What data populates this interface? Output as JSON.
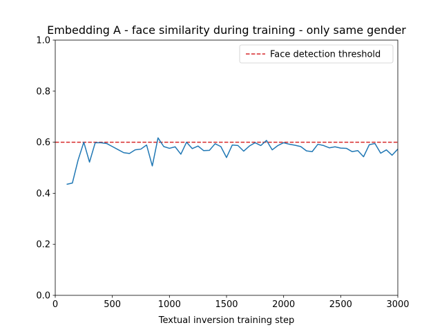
{
  "chart_data": {
    "type": "line",
    "title": "Embedding A - face similarity during training - only same gender",
    "xlabel": "Textual inversion training step",
    "ylabel": "",
    "xlim": [
      0,
      3000
    ],
    "ylim": [
      0.0,
      1.0
    ],
    "xticks": [
      0,
      500,
      1000,
      1500,
      2000,
      2500,
      3000
    ],
    "xtick_labels": [
      "0",
      "500",
      "1000",
      "1500",
      "2000",
      "2500",
      "3000"
    ],
    "yticks": [
      0.0,
      0.2,
      0.4,
      0.6,
      0.8,
      1.0
    ],
    "ytick_labels": [
      "0.0",
      "0.2",
      "0.4",
      "0.6",
      "0.8",
      "1.0"
    ],
    "grid": false,
    "legend_position": "top-right",
    "colors": {
      "series": "#1f77b4",
      "threshold": "#d62728"
    },
    "series": [
      {
        "name": "",
        "x": [
          100,
          150,
          200,
          250,
          300,
          350,
          400,
          450,
          500,
          550,
          600,
          650,
          700,
          750,
          800,
          850,
          900,
          950,
          1000,
          1050,
          1100,
          1150,
          1200,
          1250,
          1300,
          1350,
          1400,
          1450,
          1500,
          1550,
          1600,
          1650,
          1700,
          1750,
          1800,
          1850,
          1900,
          1950,
          2000,
          2050,
          2100,
          2150,
          2200,
          2250,
          2300,
          2350,
          2400,
          2450,
          2500,
          2550,
          2600,
          2650,
          2700,
          2750,
          2800,
          2850,
          2900,
          2950,
          3000
        ],
        "y": [
          0.435,
          0.44,
          0.53,
          0.6,
          0.522,
          0.598,
          0.598,
          0.595,
          0.583,
          0.571,
          0.559,
          0.556,
          0.57,
          0.573,
          0.589,
          0.507,
          0.617,
          0.583,
          0.576,
          0.582,
          0.553,
          0.6,
          0.575,
          0.585,
          0.567,
          0.568,
          0.594,
          0.583,
          0.54,
          0.589,
          0.587,
          0.565,
          0.585,
          0.598,
          0.587,
          0.607,
          0.57,
          0.587,
          0.598,
          0.592,
          0.588,
          0.583,
          0.566,
          0.563,
          0.592,
          0.587,
          0.578,
          0.582,
          0.577,
          0.576,
          0.563,
          0.567,
          0.543,
          0.59,
          0.595,
          0.557,
          0.57,
          0.549,
          0.573
        ]
      }
    ],
    "reference_lines": [
      {
        "name": "Face detection threshold",
        "y": 0.6,
        "style": "dashed"
      }
    ]
  }
}
